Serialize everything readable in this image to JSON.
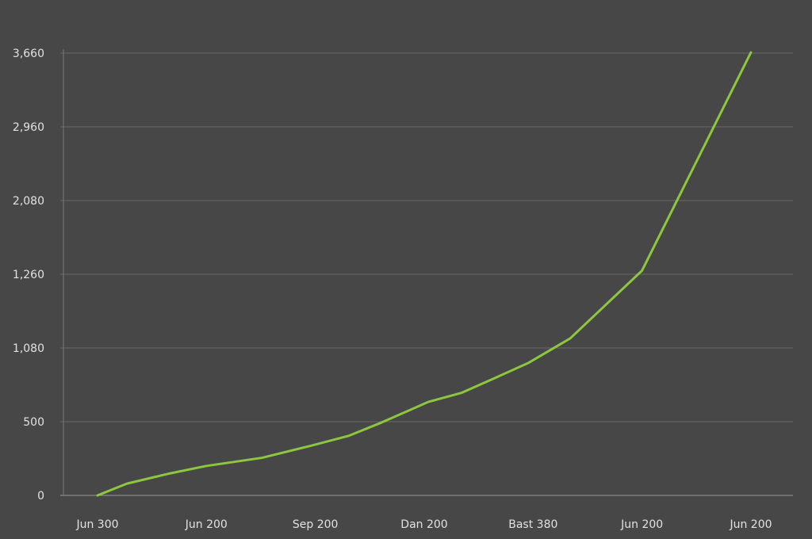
{
  "chart_data": {
    "type": "line",
    "title": "",
    "xlabel": "",
    "ylabel": "",
    "categories": [
      "Jun 300",
      "Jun 200",
      "Sep 200",
      "Dan 200",
      "Bast 380",
      "Jun 200",
      "Jun 200"
    ],
    "y_tick_labels": [
      "0",
      "500",
      "1,080",
      "1,260",
      "2,080",
      "2,960",
      "3,660"
    ],
    "ylim": [
      0,
      3000
    ],
    "grid": true,
    "colors": {
      "background": "#474747",
      "line": "#8dc63f",
      "grid": "#6a6a6a",
      "text": "#e2e2e2"
    },
    "series": [
      {
        "x": [
          0,
          0.27,
          0.67,
          1.0,
          1.51,
          1.95,
          2.31,
          2.61,
          3.04,
          3.34,
          3.66,
          3.96,
          4.34,
          5.0,
          6.0
        ],
        "values": [
          0,
          80,
          150,
          200,
          255,
          335,
          405,
          495,
          635,
          695,
          800,
          900,
          1065,
          1525,
          3005
        ]
      }
    ]
  }
}
